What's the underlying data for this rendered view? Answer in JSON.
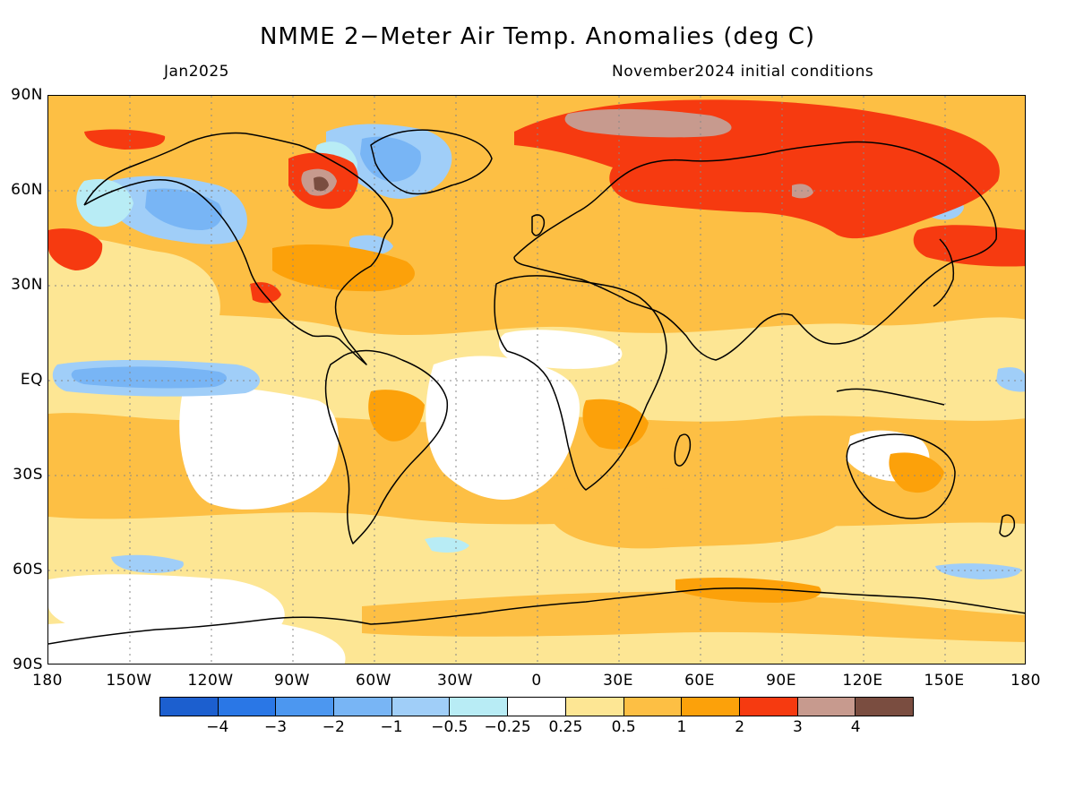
{
  "title": "NMME 2−Meter Air Temp. Anomalies (deg C)",
  "subtitle_left": "Jan2025",
  "subtitle_right": "November2024 initial conditions",
  "lat_labels": [
    "90N",
    "60N",
    "30N",
    "EQ",
    "30S",
    "60S",
    "90S"
  ],
  "lon_labels": [
    "180",
    "150W",
    "120W",
    "90W",
    "60W",
    "30W",
    "0",
    "30E",
    "60E",
    "90E",
    "120E",
    "150E",
    "180"
  ],
  "colorbar": {
    "colors": [
      "#1c5fcf",
      "#2a77e6",
      "#4c97f0",
      "#78b5f5",
      "#a0cef8",
      "#b8ecf5",
      "#ffffff",
      "#fde694",
      "#fdbf44",
      "#fca10a",
      "#f63a10",
      "#c79a8e",
      "#7a4d40"
    ],
    "labels": [
      "−4",
      "−3",
      "−2",
      "−1",
      "−0.5",
      "−0.25",
      "0.25",
      "0.5",
      "1",
      "2",
      "3",
      "4"
    ]
  },
  "palette": {
    "background_warm": "#fdbf44",
    "pale_yellow": "#fde694",
    "orange": "#fca10a",
    "red": "#f63a10",
    "rose": "#c79a8e",
    "brown": "#7a4d40",
    "light_blue": "#a0cef8",
    "mid_blue": "#78b5f5",
    "cyan": "#b8ecf5",
    "white": "#ffffff"
  }
}
